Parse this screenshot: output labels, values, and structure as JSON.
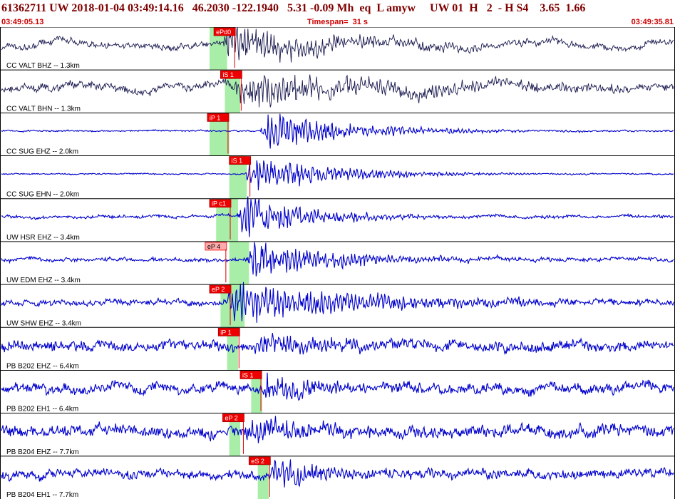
{
  "header": {
    "title": "61362711 UW 2018-01-04 03:49:14.16   46.2030 -122.1940   5.31 -0.09 Mh  eq  L amyw     UW 01  H   2  - H S4    3.65  1.66",
    "start_time": "03:49:05.13",
    "timespan": "Timespan=  31 s",
    "end_time": "03:49:35.81"
  },
  "colors": {
    "background": "#ffffff",
    "title": "#800000",
    "subtitle": "#cc0000",
    "trace_black": "#1a1a50",
    "trace_blue": "#0000cc",
    "pick_box": "#ee0000",
    "pick_box_outline": "#ffaaaa",
    "pick_window": "#a8eea8",
    "border": "#000000"
  },
  "chart_data": {
    "type": "line",
    "x_range": [
      0,
      30.68
    ],
    "x_unit": "s",
    "channels": [
      {
        "label": "CC VALT BHZ -- 1.3km",
        "color": "black",
        "pick": {
          "label": "ePd0",
          "time": 9.7,
          "style": "solid"
        },
        "window": [
          9.5,
          10.3
        ],
        "onset": 10.0,
        "noise": 0.25,
        "drift": 0.35,
        "amp": 0.9,
        "decay": 5
      },
      {
        "label": "CC VALT BHN -- 1.3km",
        "color": "black",
        "pick": {
          "label": "iS 1",
          "time": 10.0,
          "style": "solid"
        },
        "window": [
          10.2,
          10.9
        ],
        "onset": 10.6,
        "noise": 0.3,
        "drift": 0.35,
        "amp": 0.8,
        "decay": 7
      },
      {
        "label": "CC SUG EHZ -- 2.0km",
        "color": "blue",
        "pick": {
          "label": "iP 1",
          "time": 9.4,
          "style": "solid"
        },
        "window": [
          9.5,
          10.4
        ],
        "onset": 11.8,
        "noise": 0.06,
        "drift": 0.0,
        "amp": 0.85,
        "decay": 4
      },
      {
        "label": "CC SUG EHN -- 2.0km",
        "color": "blue",
        "pick": {
          "label": "iS 1",
          "time": 10.4,
          "style": "solid"
        },
        "window": [
          10.4,
          11.2
        ],
        "onset": 11.1,
        "noise": 0.05,
        "drift": 0.0,
        "amp": 0.85,
        "decay": 4
      },
      {
        "label": "UW HSR EHZ -- 3.4km",
        "color": "blue",
        "pick": {
          "label": "iP c1",
          "time": 9.5,
          "style": "solid"
        },
        "window": [
          9.8,
          10.8
        ],
        "onset": 10.7,
        "noise": 0.12,
        "drift": 0.0,
        "amp": 1.0,
        "decay": 3
      },
      {
        "label": "UW EDM EHZ -- 3.4km",
        "color": "blue",
        "pick": {
          "label": "eP 4",
          "time": 9.3,
          "style": "outline"
        },
        "window": [
          10.4,
          11.3
        ],
        "onset": 11.2,
        "noise": 0.15,
        "drift": 0.0,
        "amp": 0.85,
        "decay": 4
      },
      {
        "label": "UW SHW EHZ -- 3.4km",
        "color": "blue",
        "pick": {
          "label": "eP 2",
          "time": 9.5,
          "style": "solid"
        },
        "window": [
          10.0,
          11.1
        ],
        "onset": 10.2,
        "noise": 0.22,
        "drift": 0.0,
        "amp": 0.9,
        "decay": 6
      },
      {
        "label": "PB B202 EHZ -- 6.4km",
        "color": "blue",
        "pick": {
          "label": "iP 1",
          "time": 9.9,
          "style": "solid"
        },
        "window": [
          10.3,
          10.8
        ],
        "onset": 11.5,
        "noise": 0.4,
        "drift": 0.0,
        "amp": 0.6,
        "decay": 3
      },
      {
        "label": "PB B202 EH1 -- 6.4km",
        "color": "blue",
        "pick": {
          "label": "iS 1",
          "time": 10.9,
          "style": "solid"
        },
        "window": [
          11.4,
          11.9
        ],
        "onset": 11.8,
        "noise": 0.38,
        "drift": 0.0,
        "amp": 0.6,
        "decay": 3
      },
      {
        "label": "PB B204 EHZ -- 7.7km",
        "color": "blue",
        "pick": {
          "label": "eP 2",
          "time": 10.1,
          "style": "solid"
        },
        "window": [
          10.4,
          10.9
        ],
        "onset": 11.0,
        "noise": 0.45,
        "drift": 0.0,
        "amp": 0.55,
        "decay": 3
      },
      {
        "label": "PB B204 EH1 -- 7.7km",
        "color": "blue",
        "pick": {
          "label": "eS 2",
          "time": 11.3,
          "style": "solid"
        },
        "window": [
          11.7,
          12.2
        ],
        "onset": 12.2,
        "noise": 0.35,
        "drift": 0.0,
        "amp": 0.65,
        "decay": 3
      }
    ]
  }
}
